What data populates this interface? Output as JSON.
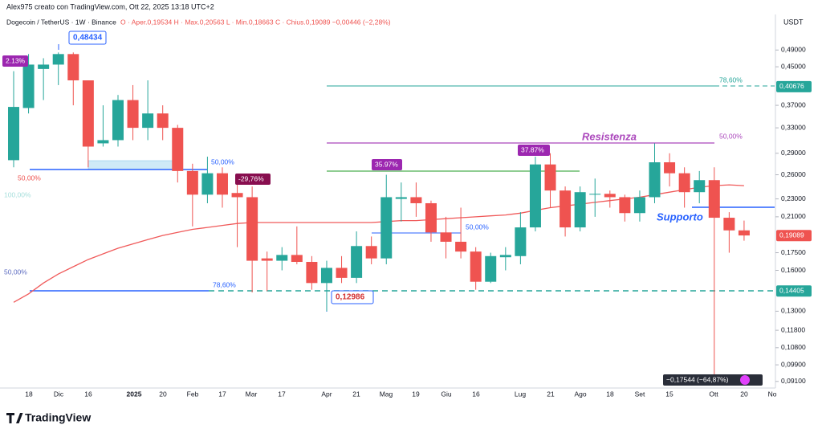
{
  "chart_data": {
    "type": "candlestick",
    "header": "Alex975 creato con TradingView.com, Ott 22, 2025 13:18 UTC+2",
    "symbol": "Dogecoin / TetherUS · 1W · Binance",
    "ohlc_text": "O · Aper.0,19534  H · Max.0,20563  L · Min.0,18663  C · Chius.0,19089  −0,00446 (−2,28%)",
    "currency": "USDT",
    "logo": "TradingView",
    "log_scale": true,
    "up_color": "#26a69a",
    "down_color": "#ef5350",
    "ma_color": "#f05a5a",
    "ylim": [
      0.088,
      0.587
    ],
    "yticks": [
      {
        "value": 0.49,
        "label": "0,49000"
      },
      {
        "value": 0.45,
        "label": "0,45000"
      },
      {
        "value": 0.37,
        "label": "0,37000"
      },
      {
        "value": 0.33,
        "label": "0,33000"
      },
      {
        "value": 0.29,
        "label": "0,29000"
      },
      {
        "value": 0.26,
        "label": "0,26000"
      },
      {
        "value": 0.23,
        "label": "0,23000"
      },
      {
        "value": 0.21,
        "label": "0,21000"
      },
      {
        "value": 0.175,
        "label": "0,17500"
      },
      {
        "value": 0.16,
        "label": "0,16000"
      },
      {
        "value": 0.13,
        "label": "0,13000"
      },
      {
        "value": 0.118,
        "label": "0,11800"
      },
      {
        "value": 0.108,
        "label": "0,10800"
      },
      {
        "value": 0.099,
        "label": "0,09900"
      },
      {
        "value": 0.091,
        "label": "0,09100"
      }
    ],
    "xtick_labels": [
      "18",
      "Dic",
      "16",
      "2025",
      "20",
      "Feb",
      "17",
      "Mar",
      "17",
      "Apr",
      "21",
      "Mag",
      "19",
      "Giu",
      "16",
      "Lug",
      "21",
      "Ago",
      "18",
      "Set",
      "15",
      "Ott",
      "20",
      "No"
    ],
    "open": [
      0.28,
      0.365,
      0.445,
      0.455,
      0.48,
      0.42,
      0.305,
      0.31,
      0.38,
      0.33,
      0.355,
      0.33,
      0.265,
      0.235,
      0.262,
      0.237,
      0.232,
      0.17,
      0.168,
      0.173,
      0.167,
      0.15,
      0.162,
      0.154,
      0.181,
      0.17,
      0.23,
      0.232,
      0.225,
      0.194,
      0.185,
      0.176,
      0.151,
      0.171,
      0.172,
      0.199,
      0.274,
      0.24,
      0.199,
      0.235,
      0.236,
      0.232,
      0.214,
      0.232,
      0.277,
      0.262,
      0.238,
      0.253,
      0.209,
      0.196
    ],
    "high": [
      0.44,
      0.48,
      0.47,
      0.484,
      0.484,
      0.42,
      0.37,
      0.39,
      0.41,
      0.42,
      0.37,
      0.335,
      0.275,
      0.285,
      0.27,
      0.26,
      0.245,
      0.176,
      0.18,
      0.2,
      0.172,
      0.168,
      0.172,
      0.195,
      0.19,
      0.26,
      0.25,
      0.25,
      0.228,
      0.21,
      0.22,
      0.18,
      0.175,
      0.18,
      0.215,
      0.285,
      0.29,
      0.245,
      0.245,
      0.255,
      0.24,
      0.235,
      0.24,
      0.305,
      0.29,
      0.27,
      0.265,
      0.27,
      0.215,
      0.206
    ],
    "low": [
      0.27,
      0.355,
      0.38,
      0.41,
      0.37,
      0.27,
      0.3,
      0.3,
      0.31,
      0.31,
      0.31,
      0.25,
      0.2,
      0.225,
      0.22,
      0.18,
      0.143,
      0.144,
      0.16,
      0.165,
      0.145,
      0.13,
      0.15,
      0.15,
      0.165,
      0.165,
      0.205,
      0.21,
      0.185,
      0.17,
      0.17,
      0.145,
      0.15,
      0.16,
      0.165,
      0.195,
      0.22,
      0.19,
      0.195,
      0.21,
      0.22,
      0.205,
      0.205,
      0.225,
      0.245,
      0.22,
      0.225,
      0.092,
      0.175,
      0.186
    ],
    "close": [
      0.367,
      0.455,
      0.455,
      0.48,
      0.42,
      0.3,
      0.31,
      0.38,
      0.33,
      0.355,
      0.33,
      0.265,
      0.235,
      0.262,
      0.235,
      0.232,
      0.168,
      0.168,
      0.173,
      0.167,
      0.15,
      0.162,
      0.154,
      0.181,
      0.17,
      0.232,
      0.232,
      0.225,
      0.194,
      0.185,
      0.176,
      0.151,
      0.172,
      0.173,
      0.199,
      0.274,
      0.24,
      0.199,
      0.238,
      0.236,
      0.232,
      0.214,
      0.232,
      0.277,
      0.262,
      0.238,
      0.253,
      0.209,
      0.196,
      0.191
    ],
    "ma_values": [
      0.136,
      0.142,
      0.15,
      0.157,
      0.163,
      0.169,
      0.174,
      0.179,
      0.183,
      0.187,
      0.191,
      0.194,
      0.197,
      0.199,
      0.201,
      0.203,
      0.204,
      0.204,
      0.204,
      0.204,
      0.204,
      0.204,
      0.204,
      0.204,
      0.204,
      0.205,
      0.206,
      0.206,
      0.207,
      0.208,
      0.209,
      0.21,
      0.211,
      0.212,
      0.214,
      0.217,
      0.22,
      0.222,
      0.224,
      0.226,
      0.228,
      0.23,
      0.232,
      0.235,
      0.238,
      0.241,
      0.244,
      0.246,
      0.247,
      0.246
    ],
    "price_labels": [
      {
        "value": 0.40676,
        "label": "0,40676",
        "color": "#26a69a"
      },
      {
        "value": 0.19089,
        "label": "0,19089",
        "color": "#ef5350"
      },
      {
        "value": 0.14405,
        "label": "0,14405",
        "color": "#26a69a"
      }
    ],
    "annotations": [
      "0,48434",
      "2.13%",
      "50,00%",
      "100,00%",
      "50,00%",
      "50,00%",
      "-29,76%",
      "78,60%",
      "0,12986",
      "35.97%",
      "50,00%",
      "37.87%",
      "Resistenza",
      "78,60%",
      "50,00%",
      "Supporto",
      "−0,17544 (−64,87%)"
    ]
  }
}
